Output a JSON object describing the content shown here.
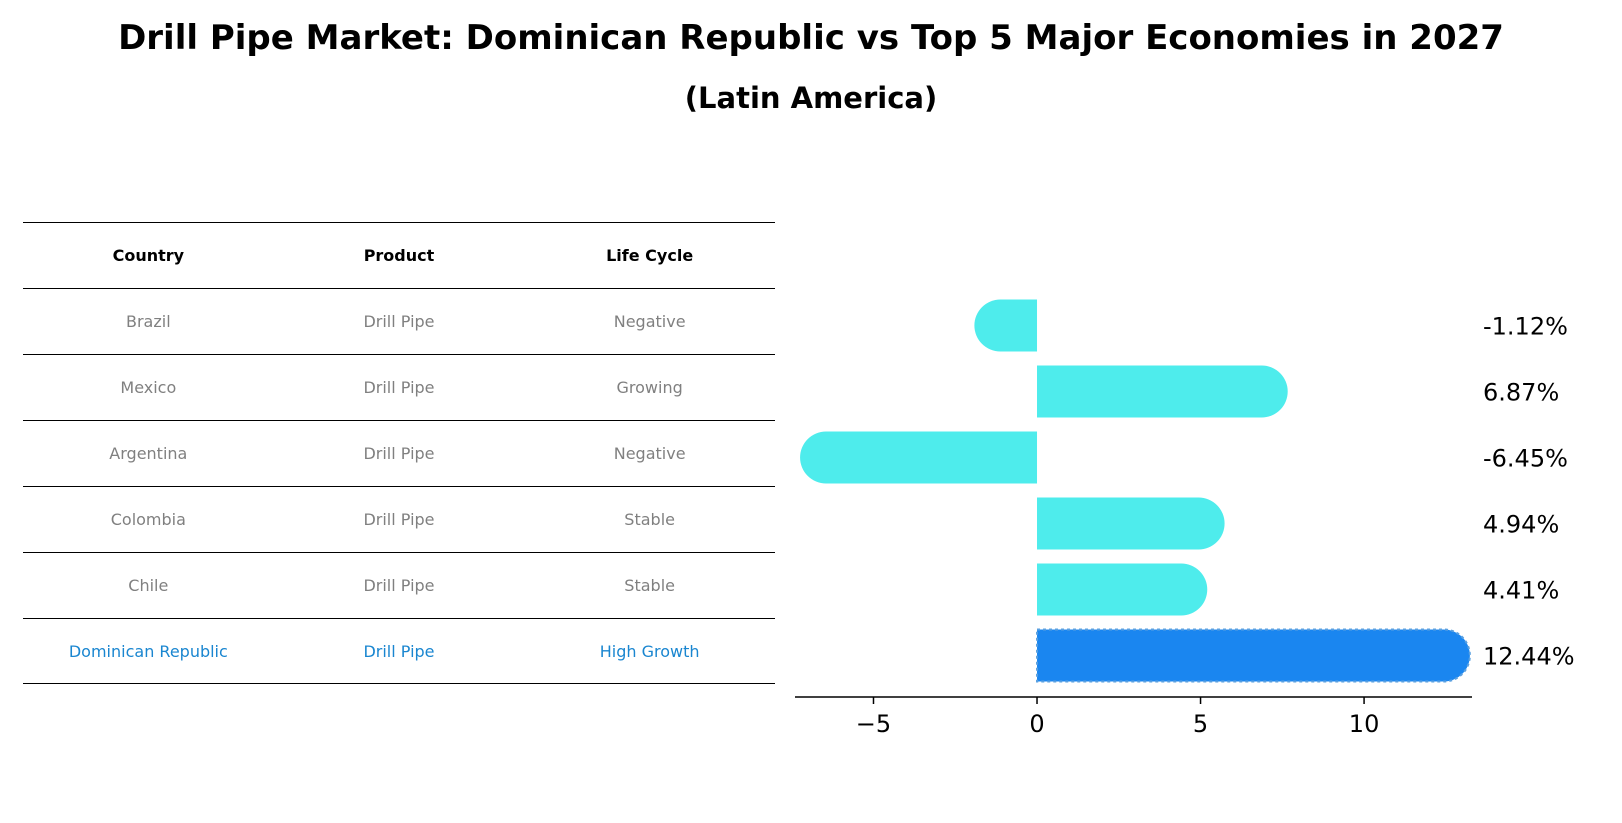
{
  "title": "Drill Pipe Market: Dominican Republic vs Top 5 Major Economies in 2027",
  "subtitle": "(Latin America)",
  "table": {
    "headers": [
      "Country",
      "Product",
      "Life Cycle"
    ],
    "rows": [
      {
        "country": "Brazil",
        "product": "Drill Pipe",
        "life_cycle": "Negative"
      },
      {
        "country": "Mexico",
        "product": "Drill Pipe",
        "life_cycle": "Growing"
      },
      {
        "country": "Argentina",
        "product": "Drill Pipe",
        "life_cycle": "Negative"
      },
      {
        "country": "Colombia",
        "product": "Drill Pipe",
        "life_cycle": "Stable"
      },
      {
        "country": "Chile",
        "product": "Drill Pipe",
        "life_cycle": "Stable"
      },
      {
        "country": "Dominican Republic",
        "product": "Drill Pipe",
        "life_cycle": "High Growth"
      }
    ]
  },
  "chart_data": {
    "type": "bar",
    "orientation": "horizontal",
    "categories": [
      "Brazil",
      "Mexico",
      "Argentina",
      "Colombia",
      "Chile",
      "Dominican Republic"
    ],
    "values": [
      -1.12,
      6.87,
      -6.45,
      4.94,
      4.41,
      12.44
    ],
    "value_labels": [
      "-1.12%",
      "6.87%",
      "-6.45%",
      "4.94%",
      "4.41%",
      "12.44%"
    ],
    "highlight_index": 5,
    "colors": {
      "default": "#4eecec",
      "highlight": "#1a86f0"
    },
    "xticks": [
      -5,
      0,
      5,
      10
    ],
    "xtick_labels": [
      "−5",
      "0",
      "5",
      "10"
    ],
    "xlim": [
      -7.4,
      13.3
    ],
    "xlabel": "",
    "ylabel": "",
    "grid": false
  }
}
